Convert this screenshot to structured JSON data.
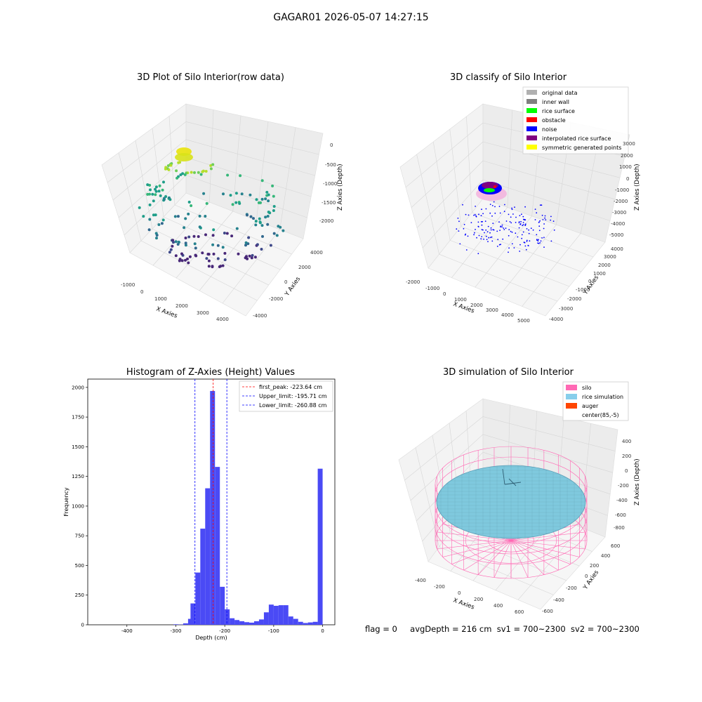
{
  "figure": {
    "suptitle": "GAGAR01 2026-05-07 14:27:15",
    "status": {
      "flag": "flag = 0",
      "avg": "avgDepth = 216 cm",
      "sv1": "sv1 = 700~2300",
      "sv2": "sv2 = 700~2300"
    }
  },
  "chart_data": [
    {
      "type": "scatter",
      "title": "3D Plot of Silo Interior(row data)",
      "xlabel": "X Axies",
      "ylabel": "Y Axies",
      "zlabel": "Z Axies (Depth)",
      "xticks": [
        "-1000",
        "0",
        "1000",
        "2000",
        "3000",
        "4000"
      ],
      "yticks": [
        "-4000",
        "-2000",
        "0",
        "2000",
        "4000"
      ],
      "zticks": [
        "0",
        "-500",
        "-1000",
        "-1500",
        "-2000"
      ],
      "colormap": "viridis"
    },
    {
      "type": "scatter",
      "title": "3D classify of Silo Interior",
      "xlabel": "X Axies",
      "ylabel": "Y Axies",
      "zlabel": "Z Axies (Depth)",
      "xticks": [
        "-2000",
        "-1000",
        "0",
        "1000",
        "2000",
        "3000",
        "4000",
        "5000"
      ],
      "yticks": [
        "-4000",
        "-3000",
        "-2000",
        "-1000",
        "0",
        "1000",
        "2000",
        "3000",
        "4000"
      ],
      "zticks": [
        "3000",
        "2000",
        "1000",
        "0",
        "-1000",
        "-2000",
        "-3000",
        "-4000",
        "-5000"
      ],
      "legend_position": "upper right",
      "legend": [
        {
          "label": "original data",
          "color": "#b0b0b0"
        },
        {
          "label": "inner wall",
          "color": "#808080"
        },
        {
          "label": "rice surface",
          "color": "#00ff00"
        },
        {
          "label": "obstacle",
          "color": "#ff0000"
        },
        {
          "label": "noise",
          "color": "#0000ff"
        },
        {
          "label": "interpolated rice surface",
          "color": "#800080"
        },
        {
          "label": "symmetric generated points",
          "color": "#ffff00"
        }
      ]
    },
    {
      "type": "bar",
      "title": "Histogram of Z-Axies (Height) Values",
      "xlabel": "Depth (cm)",
      "ylabel": "Frequency",
      "xlim": [
        -480,
        25
      ],
      "ylim": [
        0,
        2070
      ],
      "xticks": [
        -400,
        -300,
        -200,
        -100,
        0
      ],
      "yticks": [
        0,
        250,
        500,
        750,
        1000,
        1250,
        1500,
        1750,
        2000
      ],
      "bin_width": 10,
      "bar_color": "#4a4af5",
      "bins": [
        {
          "x": -300,
          "y": 4
        },
        {
          "x": -290,
          "y": 2
        },
        {
          "x": -280,
          "y": 12
        },
        {
          "x": -270,
          "y": 50
        },
        {
          "x": -265,
          "y": 180
        },
        {
          "x": -255,
          "y": 440
        },
        {
          "x": -245,
          "y": 810
        },
        {
          "x": -235,
          "y": 1150
        },
        {
          "x": -225,
          "y": 1970
        },
        {
          "x": -215,
          "y": 1330
        },
        {
          "x": -205,
          "y": 320
        },
        {
          "x": -195,
          "y": 130
        },
        {
          "x": -185,
          "y": 55
        },
        {
          "x": -175,
          "y": 40
        },
        {
          "x": -165,
          "y": 30
        },
        {
          "x": -155,
          "y": 22
        },
        {
          "x": -145,
          "y": 18
        },
        {
          "x": -135,
          "y": 30
        },
        {
          "x": -125,
          "y": 45
        },
        {
          "x": -115,
          "y": 105
        },
        {
          "x": -105,
          "y": 170
        },
        {
          "x": -95,
          "y": 160
        },
        {
          "x": -85,
          "y": 165
        },
        {
          "x": -75,
          "y": 165
        },
        {
          "x": -65,
          "y": 70
        },
        {
          "x": -55,
          "y": 50
        },
        {
          "x": -45,
          "y": 25
        },
        {
          "x": -35,
          "y": 15
        },
        {
          "x": -25,
          "y": 20
        },
        {
          "x": -15,
          "y": 25
        },
        {
          "x": -5,
          "y": 1315
        }
      ],
      "lines": [
        {
          "label": "first_peak: -223.64 cm",
          "x": -223.64,
          "color": "#ff0000"
        },
        {
          "label": "Upper_limit: -195.71 cm",
          "x": -195.71,
          "color": "#0000ff"
        },
        {
          "label": "Lower_limit: -260.88 cm",
          "x": -260.88,
          "color": "#0000ff"
        }
      ],
      "legend_position": "upper right"
    },
    {
      "type": "surface",
      "title": "3D simulation of Silo Interior",
      "xlabel": "X Axies",
      "ylabel": "Y Axies",
      "zlabel": "Z Axies (Depth)",
      "xticks": [
        "-400",
        "-200",
        "0",
        "200",
        "400",
        "600"
      ],
      "yticks": [
        "-600",
        "-400",
        "-200",
        "0",
        "200",
        "400",
        "600"
      ],
      "zticks": [
        "400",
        "200",
        "0",
        "-200",
        "-400",
        "-600",
        "-800"
      ],
      "legend_position": "upper right",
      "legend": [
        {
          "label": "silo",
          "color": "#ff69b4"
        },
        {
          "label": "rice simulation",
          "color": "#87ceeb"
        },
        {
          "label": "auger",
          "color": "#ff4500"
        },
        {
          "label": "center(85,-5)",
          "color": "#ffffff"
        }
      ]
    }
  ]
}
